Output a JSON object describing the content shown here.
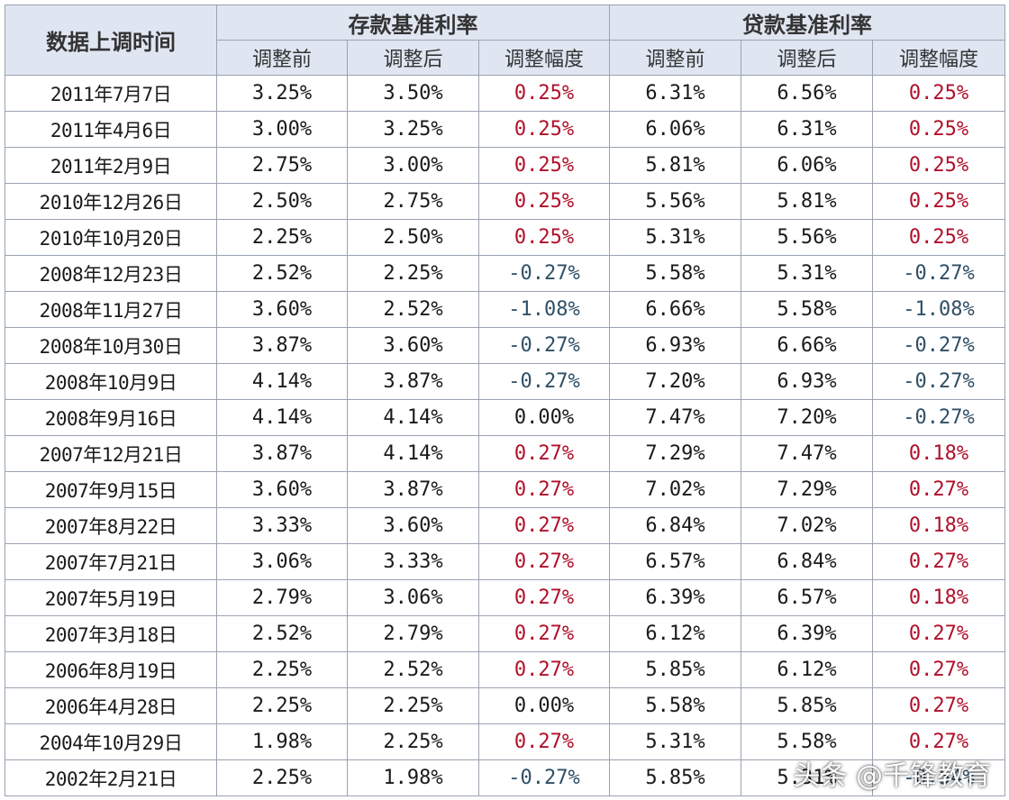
{
  "header": {
    "date_col": "数据上调时间",
    "deposit_group": "存款基准利率",
    "loan_group": "贷款基准利率",
    "sub": [
      "调整前",
      "调整后",
      "调整幅度",
      "调整前",
      "调整后",
      "调整幅度"
    ]
  },
  "rows": [
    {
      "date": "2011年7月7日",
      "d_before": "3.25%",
      "d_after": "3.50%",
      "d_delta": "0.25%",
      "l_before": "6.31%",
      "l_after": "6.56%",
      "l_delta": "0.25%"
    },
    {
      "date": "2011年4月6日",
      "d_before": "3.00%",
      "d_after": "3.25%",
      "d_delta": "0.25%",
      "l_before": "6.06%",
      "l_after": "6.31%",
      "l_delta": "0.25%"
    },
    {
      "date": "2011年2月9日",
      "d_before": "2.75%",
      "d_after": "3.00%",
      "d_delta": "0.25%",
      "l_before": "5.81%",
      "l_after": "6.06%",
      "l_delta": "0.25%"
    },
    {
      "date": "2010年12月26日",
      "d_before": "2.50%",
      "d_after": "2.75%",
      "d_delta": "0.25%",
      "l_before": "5.56%",
      "l_after": "5.81%",
      "l_delta": "0.25%"
    },
    {
      "date": "2010年10月20日",
      "d_before": "2.25%",
      "d_after": "2.50%",
      "d_delta": "0.25%",
      "l_before": "5.31%",
      "l_after": "5.56%",
      "l_delta": "0.25%"
    },
    {
      "date": "2008年12月23日",
      "d_before": "2.52%",
      "d_after": "2.25%",
      "d_delta": "-0.27%",
      "l_before": "5.58%",
      "l_after": "5.31%",
      "l_delta": "-0.27%"
    },
    {
      "date": "2008年11月27日",
      "d_before": "3.60%",
      "d_after": "2.52%",
      "d_delta": "-1.08%",
      "l_before": "6.66%",
      "l_after": "5.58%",
      "l_delta": "-1.08%"
    },
    {
      "date": "2008年10月30日",
      "d_before": "3.87%",
      "d_after": "3.60%",
      "d_delta": "-0.27%",
      "l_before": "6.93%",
      "l_after": "6.66%",
      "l_delta": "-0.27%"
    },
    {
      "date": "2008年10月9日",
      "d_before": "4.14%",
      "d_after": "3.87%",
      "d_delta": "-0.27%",
      "l_before": "7.20%",
      "l_after": "6.93%",
      "l_delta": "-0.27%"
    },
    {
      "date": "2008年9月16日",
      "d_before": "4.14%",
      "d_after": "4.14%",
      "d_delta": "0.00%",
      "l_before": "7.47%",
      "l_after": "7.20%",
      "l_delta": "-0.27%"
    },
    {
      "date": "2007年12月21日",
      "d_before": "3.87%",
      "d_after": "4.14%",
      "d_delta": "0.27%",
      "l_before": "7.29%",
      "l_after": "7.47%",
      "l_delta": "0.18%"
    },
    {
      "date": "2007年9月15日",
      "d_before": "3.60%",
      "d_after": "3.87%",
      "d_delta": "0.27%",
      "l_before": "7.02%",
      "l_after": "7.29%",
      "l_delta": "0.27%"
    },
    {
      "date": "2007年8月22日",
      "d_before": "3.33%",
      "d_after": "3.60%",
      "d_delta": "0.27%",
      "l_before": "6.84%",
      "l_after": "7.02%",
      "l_delta": "0.18%"
    },
    {
      "date": "2007年7月21日",
      "d_before": "3.06%",
      "d_after": "3.33%",
      "d_delta": "0.27%",
      "l_before": "6.57%",
      "l_after": "6.84%",
      "l_delta": "0.27%"
    },
    {
      "date": "2007年5月19日",
      "d_before": "2.79%",
      "d_after": "3.06%",
      "d_delta": "0.27%",
      "l_before": "6.39%",
      "l_after": "6.57%",
      "l_delta": "0.18%"
    },
    {
      "date": "2007年3月18日",
      "d_before": "2.52%",
      "d_after": "2.79%",
      "d_delta": "0.27%",
      "l_before": "6.12%",
      "l_after": "6.39%",
      "l_delta": "0.27%"
    },
    {
      "date": "2006年8月19日",
      "d_before": "2.25%",
      "d_after": "2.52%",
      "d_delta": "0.27%",
      "l_before": "5.85%",
      "l_after": "6.12%",
      "l_delta": "0.27%"
    },
    {
      "date": "2006年4月28日",
      "d_before": "2.25%",
      "d_after": "2.25%",
      "d_delta": "0.00%",
      "l_before": "5.58%",
      "l_after": "5.85%",
      "l_delta": "0.27%"
    },
    {
      "date": "2004年10月29日",
      "d_before": "1.98%",
      "d_after": "2.25%",
      "d_delta": "0.27%",
      "l_before": "5.31%",
      "l_after": "5.58%",
      "l_delta": "0.27%"
    },
    {
      "date": "2002年2月21日",
      "d_before": "2.25%",
      "d_after": "1.98%",
      "d_delta": "-0.27%",
      "l_before": "5.85%",
      "l_after": "5.31%",
      "l_delta": "-0.54%"
    }
  ],
  "watermark": "头条 @千锋教育",
  "colors": {
    "increase": "#b0102a",
    "decrease": "#2f4f66",
    "header_bg": "#dfe6f2",
    "border": "#9aa3b0"
  }
}
